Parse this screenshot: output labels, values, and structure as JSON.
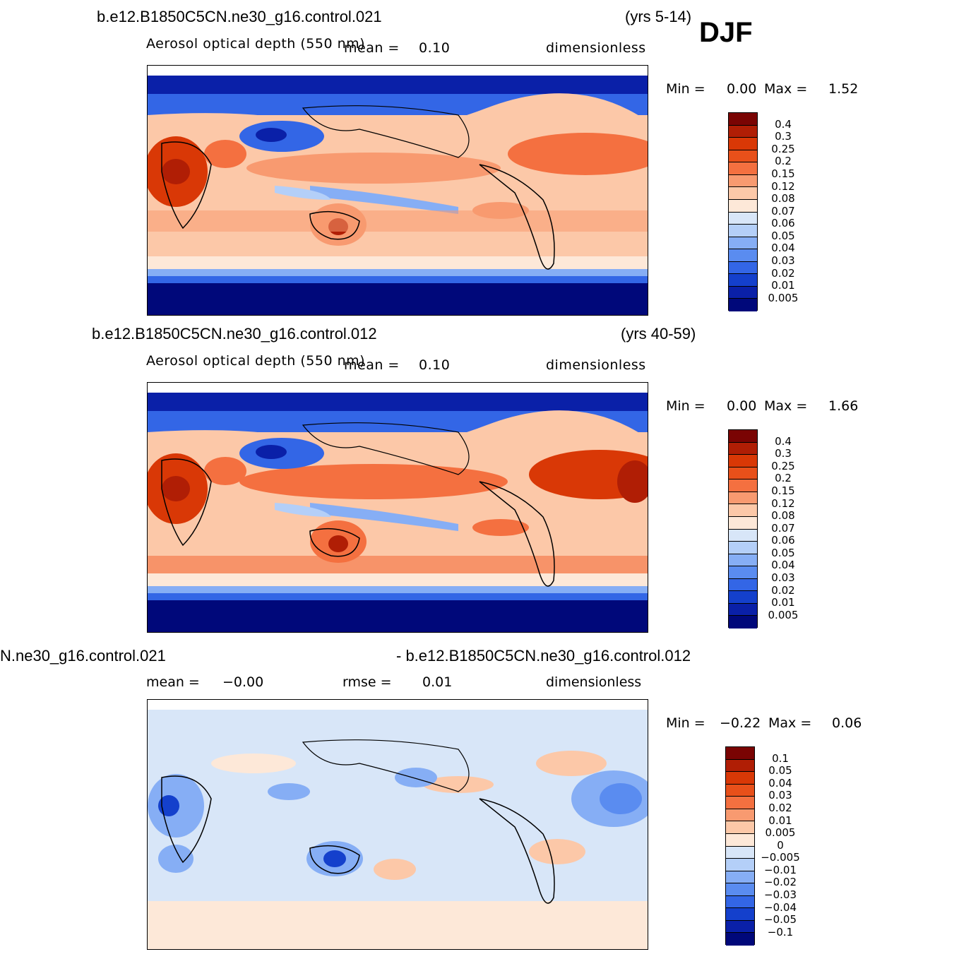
{
  "season": "DJF",
  "panels": [
    {
      "case": "b.e12.B1850C5CN.ne30_g16.control.021",
      "years": "(yrs 5-14)",
      "variable": "Aerosol optical depth (550 nm)",
      "mean_label": "mean =",
      "mean_value": "0.10",
      "units": "dimensionless",
      "min_label": "Min =",
      "min_value": "0.00",
      "max_label": "Max =",
      "max_value": "1.52",
      "colorbar_labels": [
        "0.4",
        "0.3",
        "0.25",
        "0.2",
        "0.15",
        "0.12",
        "0.08",
        "0.07",
        "0.06",
        "0.05",
        "0.04",
        "0.03",
        "0.02",
        "0.01",
        "0.005"
      ]
    },
    {
      "case": "b.e12.B1850C5CN.ne30_g16.control.012",
      "years": "(yrs 40-59)",
      "variable": "Aerosol optical depth (550 nm)",
      "mean_label": "mean =",
      "mean_value": "0.10",
      "units": "dimensionless",
      "min_label": "Min =",
      "min_value": "0.00",
      "max_label": "Max =",
      "max_value": "1.66",
      "colorbar_labels": [
        "0.4",
        "0.3",
        "0.25",
        "0.2",
        "0.15",
        "0.12",
        "0.08",
        "0.07",
        "0.06",
        "0.05",
        "0.04",
        "0.03",
        "0.02",
        "0.01",
        "0.005"
      ]
    },
    {
      "case_left": "N.ne30_g16.control.021",
      "case_right": "- b.e12.B1850C5CN.ne30_g16.control.012",
      "mean_label": "mean =",
      "mean_value": "−0.00",
      "rmse_label": "rmse =",
      "rmse_value": "0.01",
      "units": "dimensionless",
      "min_label": "Min =",
      "min_value": "−0.22",
      "max_label": "Max =",
      "max_value": "0.06",
      "colorbar_labels": [
        "0.1",
        "0.05",
        "0.04",
        "0.03",
        "0.02",
        "0.01",
        "0.005",
        "0",
        "−0.005",
        "−0.01",
        "−0.02",
        "−0.03",
        "−0.04",
        "−0.05",
        "−0.1"
      ]
    }
  ],
  "colors": {
    "aod_scale": [
      "#7a0403",
      "#b01e05",
      "#d93806",
      "#e8501a",
      "#f47040",
      "#f89a70",
      "#fcc8a8",
      "#fde8d8",
      "#d8e6f8",
      "#b4cff8",
      "#86aef5",
      "#5a8cf0",
      "#3366e6",
      "#1440cc",
      "#0a20a8",
      "#00087a"
    ],
    "diff_scale": [
      "#7a0403",
      "#b01e05",
      "#d93806",
      "#e8501a",
      "#f47040",
      "#f89a70",
      "#fcc8a8",
      "#fde8d8",
      "#d8e6f8",
      "#b4cff8",
      "#86aef5",
      "#5a8cf0",
      "#3366e6",
      "#1440cc",
      "#0a20a8",
      "#00087a"
    ]
  }
}
